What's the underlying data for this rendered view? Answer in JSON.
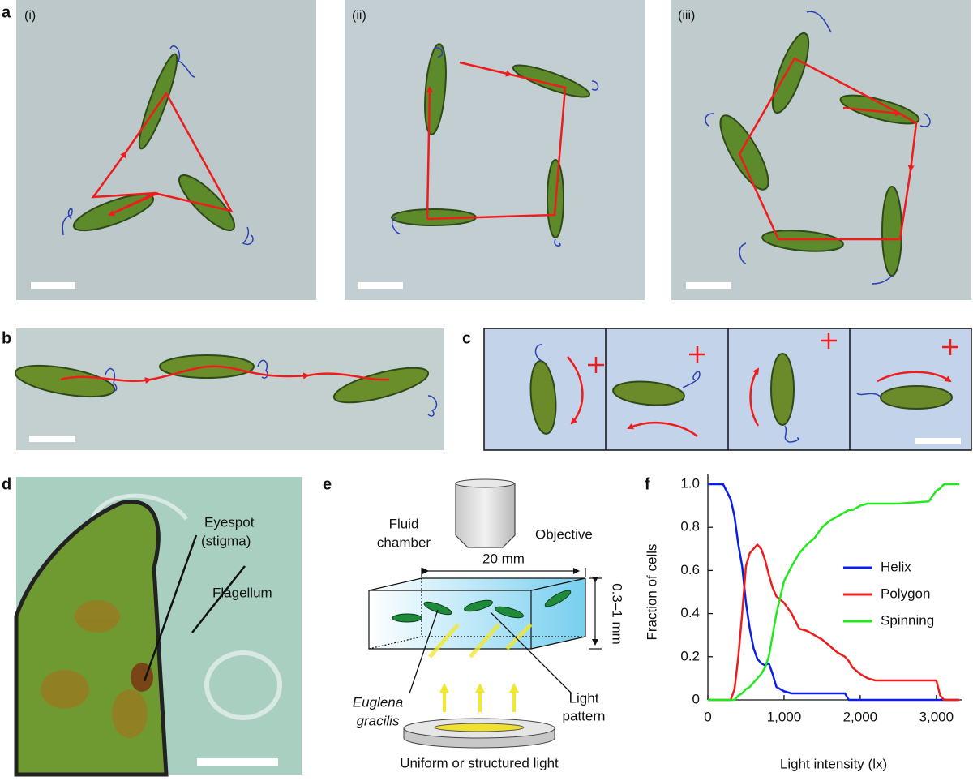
{
  "panels": {
    "a": {
      "label": "a",
      "sub": [
        "(i)",
        "(ii)",
        "(iii)"
      ]
    },
    "b": {
      "label": "b"
    },
    "c": {
      "label": "c"
    },
    "d": {
      "label": "d",
      "eyespot": [
        "Eyespot",
        "(stigma)"
      ],
      "flagellum": "Flagellum"
    },
    "e": {
      "label": "e",
      "fluid_chamber": [
        "Fluid",
        "chamber"
      ],
      "objective": "Objective",
      "width": "20 mm",
      "depth": "0.3–1 mm",
      "organism": [
        "Euglena",
        "gracilis"
      ],
      "light_pattern": [
        "Light",
        "pattern"
      ],
      "light_source": "Uniform or structured light"
    },
    "f": {
      "label": "f"
    }
  },
  "chart_data": {
    "type": "line",
    "xlabel": "Light intensity (lx)",
    "ylabel": "Fraction of cells",
    "x": [
      0,
      200,
      300,
      350,
      400,
      450,
      500,
      550,
      600,
      650,
      700,
      750,
      800,
      850,
      900,
      1000,
      1100,
      1200,
      1300,
      1400,
      1500,
      1600,
      1700,
      1800,
      1850,
      1900,
      2000,
      2100,
      2200,
      2500,
      2900,
      3000,
      3050,
      3100,
      3150,
      3300
    ],
    "series": [
      {
        "name": "Helix",
        "color": "#0b1ee8",
        "values": [
          1,
          1,
          0.93,
          0.85,
          0.72,
          0.62,
          0.45,
          0.33,
          0.24,
          0.19,
          0.17,
          0.16,
          0.17,
          0.12,
          0.06,
          0.04,
          0.03,
          0.03,
          0.03,
          0.03,
          0.03,
          0.03,
          0.03,
          0.03,
          0,
          0,
          0,
          0,
          0,
          0,
          0,
          0,
          0,
          0,
          0,
          0
        ]
      },
      {
        "name": "Polygon",
        "color": "#ee1c1c",
        "values": [
          0,
          0,
          0,
          0.05,
          0.2,
          0.4,
          0.62,
          0.68,
          0.7,
          0.72,
          0.7,
          0.65,
          0.58,
          0.52,
          0.48,
          0.45,
          0.4,
          0.33,
          0.32,
          0.3,
          0.28,
          0.25,
          0.22,
          0.2,
          0.18,
          0.15,
          0.12,
          0.1,
          0.09,
          0.09,
          0.09,
          0.09,
          0.02,
          0,
          0,
          0
        ]
      },
      {
        "name": "Spinning",
        "color": "#22e81e",
        "values": [
          0,
          0,
          0,
          0,
          0.02,
          0.03,
          0.05,
          0.06,
          0.08,
          0.1,
          0.12,
          0.15,
          0.2,
          0.3,
          0.4,
          0.55,
          0.62,
          0.68,
          0.72,
          0.75,
          0.8,
          0.83,
          0.85,
          0.87,
          0.88,
          0.88,
          0.9,
          0.91,
          0.91,
          0.91,
          0.92,
          0.97,
          0.98,
          1,
          1,
          1
        ]
      }
    ],
    "xlim": [
      0,
      3300
    ],
    "ylim": [
      0,
      1
    ],
    "xticks": [
      0,
      {
        "value": 1000,
        "label": "1,000"
      },
      {
        "value": 2000,
        "label": "2,000"
      },
      {
        "value": 3000,
        "label": "3,000"
      }
    ],
    "yticks": [
      0,
      0.2,
      0.4,
      0.6,
      0.8,
      {
        "value": 1,
        "label": "1.0"
      }
    ],
    "legend": "right"
  }
}
